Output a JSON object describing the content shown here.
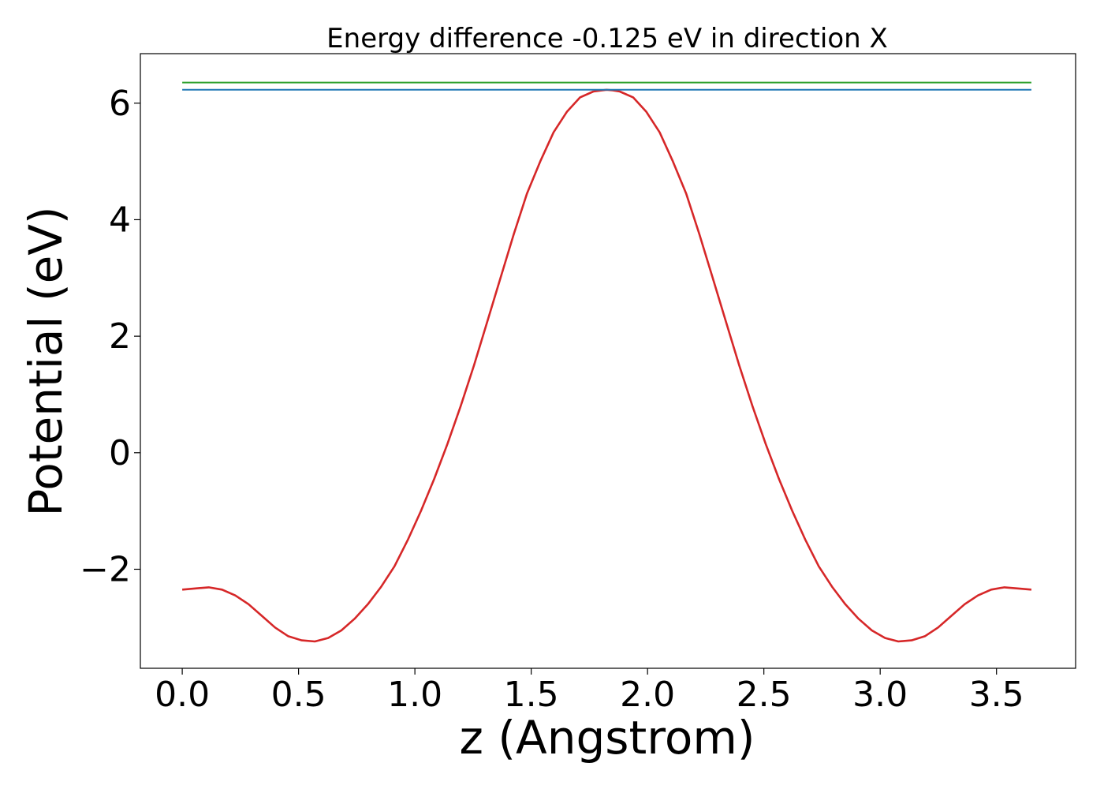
{
  "chart_data": {
    "type": "line",
    "title": "Energy difference -0.125 eV in direction X",
    "xlabel": "z (Angstrom)",
    "ylabel": "Potential (eV)",
    "xlim": [
      -0.18,
      3.84
    ],
    "ylim": [
      -3.7,
      6.85
    ],
    "xticks": [
      0.0,
      0.5,
      1.0,
      1.5,
      2.0,
      2.5,
      3.0,
      3.5
    ],
    "xtick_labels": [
      "0.0",
      "0.5",
      "1.0",
      "1.5",
      "2.0",
      "2.5",
      "3.0",
      "3.5"
    ],
    "yticks": [
      -2,
      0,
      2,
      4,
      6
    ],
    "ytick_labels": [
      "−2",
      "0",
      "2",
      "4",
      "6"
    ],
    "grid": false,
    "series": [
      {
        "color": "#d62728",
        "x": [
          0.0,
          0.057,
          0.114,
          0.171,
          0.228,
          0.285,
          0.342,
          0.399,
          0.456,
          0.513,
          0.57,
          0.627,
          0.684,
          0.741,
          0.798,
          0.855,
          0.912,
          0.969,
          1.026,
          1.083,
          1.14,
          1.197,
          1.254,
          1.311,
          1.368,
          1.425,
          1.482,
          1.539,
          1.596,
          1.653,
          1.71,
          1.767,
          1.824,
          1.85,
          1.881,
          1.938,
          1.995,
          2.052,
          2.109,
          2.166,
          2.223,
          2.28,
          2.337,
          2.394,
          2.451,
          2.508,
          2.565,
          2.622,
          2.679,
          2.736,
          2.793,
          2.85,
          2.907,
          2.964,
          3.021,
          3.078,
          3.135,
          3.192,
          3.249,
          3.306,
          3.363,
          3.42,
          3.477,
          3.534,
          3.591,
          3.65
        ],
        "y": [
          -2.35,
          -2.33,
          -2.31,
          -2.35,
          -2.45,
          -2.6,
          -2.8,
          -3.0,
          -3.15,
          -3.22,
          -3.24,
          -3.18,
          -3.05,
          -2.85,
          -2.6,
          -2.3,
          -1.95,
          -1.5,
          -1.0,
          -0.45,
          0.15,
          0.8,
          1.5,
          2.25,
          3.0,
          3.75,
          4.45,
          5.0,
          5.5,
          5.85,
          6.1,
          6.2,
          6.23,
          6.22,
          6.2,
          6.1,
          5.85,
          5.5,
          5.0,
          4.45,
          3.75,
          3.0,
          2.25,
          1.5,
          0.8,
          0.15,
          -0.45,
          -1.0,
          -1.5,
          -1.95,
          -2.3,
          -2.6,
          -2.85,
          -3.05,
          -3.18,
          -3.24,
          -3.22,
          -3.15,
          -3.0,
          -2.8,
          -2.6,
          -2.45,
          -2.35,
          -2.31,
          -2.33,
          -2.35
        ]
      },
      {
        "color": "#1f77b4",
        "x": [
          0.0,
          3.65
        ],
        "y": [
          6.23,
          6.23
        ]
      },
      {
        "color": "#2ca02c",
        "x": [
          0.0,
          3.65
        ],
        "y": [
          6.355,
          6.355
        ]
      }
    ]
  }
}
